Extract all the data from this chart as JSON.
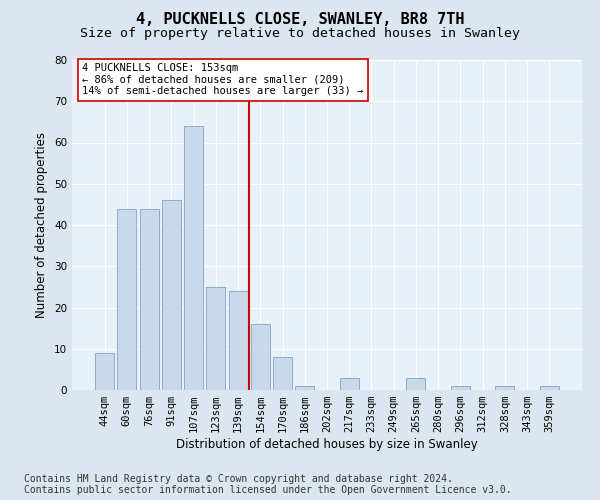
{
  "title": "4, PUCKNELLS CLOSE, SWANLEY, BR8 7TH",
  "subtitle": "Size of property relative to detached houses in Swanley",
  "xlabel": "Distribution of detached houses by size in Swanley",
  "ylabel": "Number of detached properties",
  "bar_labels": [
    "44sqm",
    "60sqm",
    "76sqm",
    "91sqm",
    "107sqm",
    "123sqm",
    "139sqm",
    "154sqm",
    "170sqm",
    "186sqm",
    "202sqm",
    "217sqm",
    "233sqm",
    "249sqm",
    "265sqm",
    "280sqm",
    "296sqm",
    "312sqm",
    "328sqm",
    "343sqm",
    "359sqm"
  ],
  "bar_values": [
    9,
    44,
    44,
    46,
    64,
    25,
    24,
    16,
    8,
    1,
    0,
    3,
    0,
    0,
    3,
    0,
    1,
    0,
    1,
    0,
    1
  ],
  "bar_color": "#c9d9ea",
  "bar_edge_color": "#7fa4c8",
  "vline_color": "#cc0000",
  "annotation_text": "4 PUCKNELLS CLOSE: 153sqm\n← 86% of detached houses are smaller (209)\n14% of semi-detached houses are larger (33) →",
  "annotation_box_color": "#ffffff",
  "annotation_box_edge": "#cc0000",
  "footer1": "Contains HM Land Registry data © Crown copyright and database right 2024.",
  "footer2": "Contains public sector information licensed under the Open Government Licence v3.0.",
  "bg_color": "#dce6f0",
  "plot_bg_color": "#e8f0f8",
  "grid_color": "#ffffff",
  "ylim": [
    0,
    80
  ],
  "yticks": [
    0,
    10,
    20,
    30,
    40,
    50,
    60,
    70,
    80
  ],
  "title_fontsize": 11,
  "subtitle_fontsize": 9.5,
  "axis_label_fontsize": 8.5,
  "tick_fontsize": 7.5,
  "footer_fontsize": 7,
  "annot_fontsize": 7.5
}
